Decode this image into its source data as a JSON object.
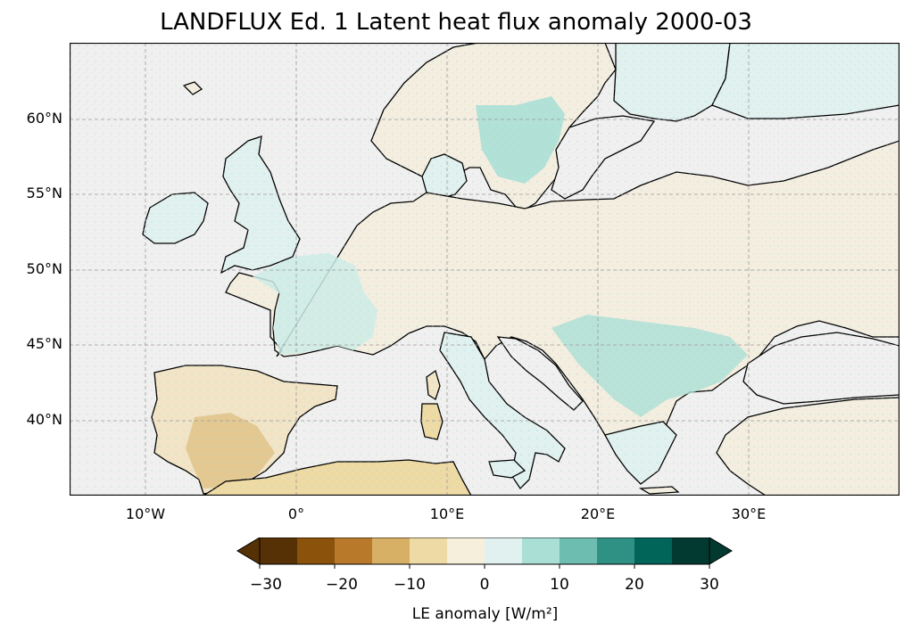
{
  "title": "LANDFLUX Ed. 1 Latent heat flux anomaly 2000-03",
  "map": {
    "lat_labels": [
      "60°N",
      "55°N",
      "50°N",
      "45°N",
      "40°N"
    ],
    "lon_labels": [
      "10°W",
      "0°",
      "10°E",
      "20°E",
      "30°E"
    ],
    "extent_lon": [
      -15,
      40
    ],
    "extent_lat": [
      35,
      65
    ],
    "gridlines": true,
    "colors": {
      "ocean": "#f0f0f0",
      "land_neutral": "#f3eee0",
      "coast": "#000000"
    }
  },
  "colorbar": {
    "label": "LE anomaly [W/m²]",
    "tick_labels": [
      "−30",
      "−20",
      "−10",
      "0",
      "10",
      "20",
      "30"
    ],
    "boundaries": [
      -30,
      -25,
      -20,
      -15,
      -10,
      -5,
      0,
      5,
      10,
      15,
      20,
      25,
      30
    ],
    "colors": [
      "#553105",
      "#8b520c",
      "#b87a2a",
      "#d7b066",
      "#eedaa4",
      "#f5efdc",
      "#e0f1ef",
      "#aadfd6",
      "#6ebdb1",
      "#2f9184",
      "#01655a",
      "#023a31"
    ],
    "extend": "both"
  }
}
